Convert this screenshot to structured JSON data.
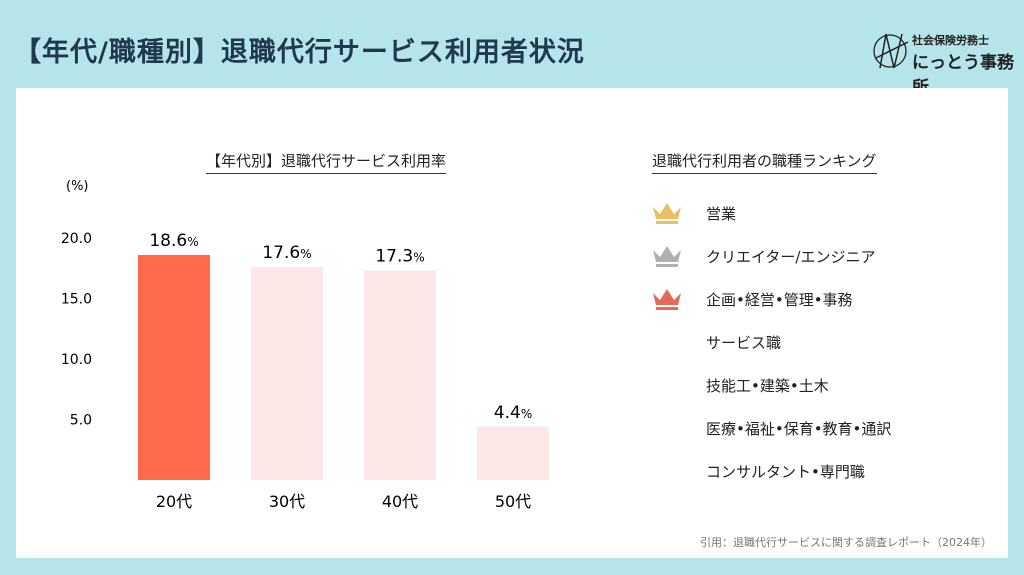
{
  "header": {
    "title": "【年代/職種別】退職代行サービス利用者状況"
  },
  "logo": {
    "sub": "社会保険労務士",
    "main": "にっとう事務所"
  },
  "chart_data": {
    "type": "bar",
    "title": "【年代別】退職代行サービス利用率",
    "ylabel": "(%)",
    "categories": [
      "20代",
      "30代",
      "40代",
      "50代"
    ],
    "values": [
      18.6,
      17.6,
      17.3,
      4.4
    ],
    "value_suffix": "%",
    "yticks": [
      "5.0",
      "10.0",
      "15.0",
      "20.0"
    ],
    "ylim": [
      0,
      20
    ],
    "grid": false,
    "colors": {
      "highlight": "#ff6b4a",
      "default": "#fde6e6"
    }
  },
  "ranking": {
    "title": "退職代行利用者の職種ランキング",
    "items": [
      {
        "label": "営業",
        "icon": "crown-gold-icon",
        "color": "#e7c160"
      },
      {
        "label": "クリエイター/エンジニア",
        "icon": "crown-silver-icon",
        "color": "#b0b0b4"
      },
      {
        "label": "企画•経営•管理•事務",
        "icon": "crown-bronze-icon",
        "color": "#e56a5a"
      },
      {
        "label": "サービス職"
      },
      {
        "label": "技能工•建築•土木"
      },
      {
        "label": "医療•福祉•保育•教育•通訳"
      },
      {
        "label": "コンサルタント•専門職"
      }
    ]
  },
  "citation": "引用：退職代行サービスに関する調査レポート（2024年）"
}
